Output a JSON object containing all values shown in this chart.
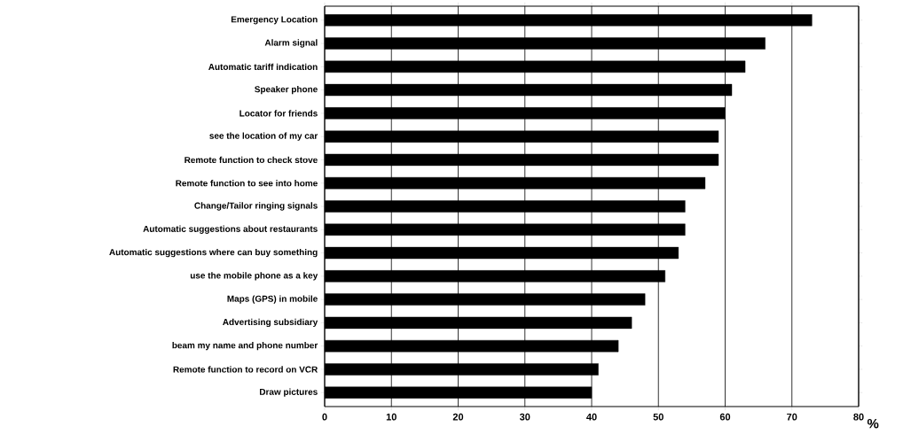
{
  "chart_data": {
    "type": "bar",
    "orientation": "horizontal",
    "xlabel": "%",
    "categories": [
      "Emergency Location",
      "Alarm signal",
      "Automatic tariff indication",
      "Speaker phone",
      "Locator for friends",
      "see the location of my car",
      "Remote function to check stove",
      "Remote function to see into home",
      "Change/Tailor ringing signals",
      "Automatic suggestions about restaurants",
      "Automatic suggestions where can buy something",
      "use the mobile phone as a key",
      "Maps (GPS) in mobile",
      "Advertising subsidiary",
      "beam my name and phone number",
      "Remote function to record on VCR",
      "Draw pictures"
    ],
    "values": [
      73,
      66,
      63,
      61,
      60,
      59,
      59,
      57,
      54,
      54,
      53,
      51,
      48,
      46,
      44,
      41,
      40
    ],
    "color": "#000000",
    "xlim": [
      0,
      80
    ],
    "xticks": [
      0,
      10,
      20,
      30,
      40,
      50,
      60,
      70,
      80
    ],
    "grid": "x"
  }
}
